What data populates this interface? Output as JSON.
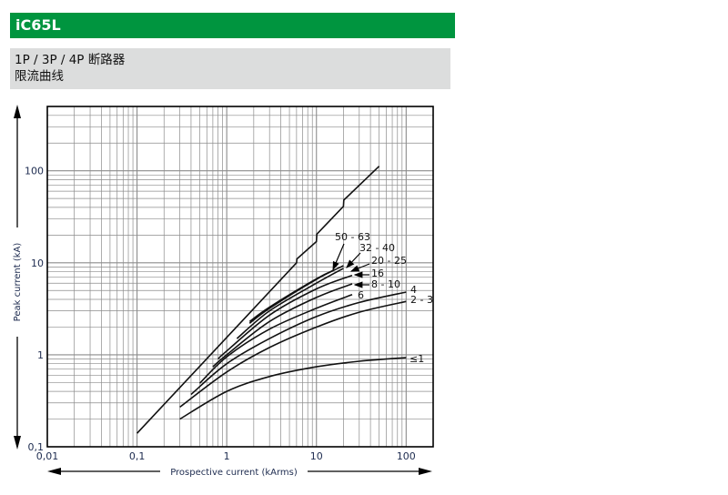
{
  "header": {
    "title": "iC65L"
  },
  "subheader": {
    "line1": "1P / 3P / 4P 断路器",
    "line2": "限流曲线"
  },
  "colors": {
    "header_bg": "#00953f",
    "subheader_bg": "#dcdddd",
    "axis_text": "#1d2b4f",
    "curve": "#111111",
    "grid": "#8c8c8c"
  },
  "chart_data": {
    "type": "line",
    "title": "",
    "xlabel": "Prospective current (kArms)",
    "ylabel": "Peak current (kA)",
    "xscale": "log",
    "yscale": "log",
    "xlim": [
      0.01,
      200
    ],
    "ylim": [
      0.1,
      500
    ],
    "grid": true,
    "x_ticks": [
      {
        "value": 0.01,
        "label": "0,01"
      },
      {
        "value": 0.1,
        "label": "0,1"
      },
      {
        "value": 1,
        "label": "1"
      },
      {
        "value": 10,
        "label": "10"
      },
      {
        "value": 100,
        "label": "100"
      }
    ],
    "y_ticks": [
      {
        "value": 0.1,
        "label": "0,1"
      },
      {
        "value": 1,
        "label": "1"
      },
      {
        "value": 10,
        "label": "10"
      },
      {
        "value": 100,
        "label": "100"
      }
    ],
    "series": [
      {
        "name": "",
        "role": "unlimited peak",
        "points": [
          [
            0.1,
            0.14
          ],
          [
            6,
            10
          ],
          [
            6.05,
            11
          ],
          [
            10,
            17
          ],
          [
            10.1,
            20.5
          ],
          [
            20,
            41
          ],
          [
            20.2,
            48
          ],
          [
            50,
            112
          ]
        ]
      },
      {
        "name": "50 - 63",
        "points": [
          [
            1.8,
            2.3
          ],
          [
            3,
            3.3
          ],
          [
            10,
            6.7
          ],
          [
            16,
            8.4
          ]
        ]
      },
      {
        "name": "32 - 40",
        "points": [
          [
            1.8,
            2.2
          ],
          [
            3,
            3.2
          ],
          [
            10,
            6.6
          ],
          [
            20,
            9.3
          ]
        ]
      },
      {
        "name": "20 - 25",
        "points": [
          [
            1.3,
            1.5
          ],
          [
            3,
            3.0
          ],
          [
            10,
            6.0
          ],
          [
            20,
            8.7
          ]
        ]
      },
      {
        "name": "16",
        "points": [
          [
            0.8,
            0.9
          ],
          [
            1,
            1.1
          ],
          [
            3,
            2.7
          ],
          [
            10,
            5.2
          ],
          [
            25,
            7.3
          ]
        ]
      },
      {
        "name": "8 - 10",
        "points": [
          [
            0.7,
            0.74
          ],
          [
            1,
            1.0
          ],
          [
            3,
            2.3
          ],
          [
            10,
            4.2
          ],
          [
            25,
            5.9
          ]
        ]
      },
      {
        "name": "6",
        "points": [
          [
            0.5,
            0.49
          ],
          [
            1,
            0.95
          ],
          [
            3,
            1.9
          ],
          [
            10,
            3.2
          ],
          [
            25,
            4.5
          ]
        ]
      },
      {
        "name": "4",
        "points": [
          [
            0.4,
            0.37
          ],
          [
            1,
            0.8
          ],
          [
            3,
            1.5
          ],
          [
            10,
            2.6
          ],
          [
            30,
            3.7
          ],
          [
            100,
            4.8
          ]
        ]
      },
      {
        "name": "2 - 3",
        "points": [
          [
            0.3,
            0.27
          ],
          [
            1,
            0.65
          ],
          [
            3,
            1.2
          ],
          [
            10,
            2.0
          ],
          [
            30,
            2.9
          ],
          [
            100,
            3.8
          ]
        ]
      },
      {
        "name": "≤1",
        "points": [
          [
            0.3,
            0.2
          ],
          [
            1,
            0.4
          ],
          [
            3,
            0.58
          ],
          [
            10,
            0.74
          ],
          [
            30,
            0.85
          ],
          [
            100,
            0.93
          ]
        ]
      }
    ]
  }
}
